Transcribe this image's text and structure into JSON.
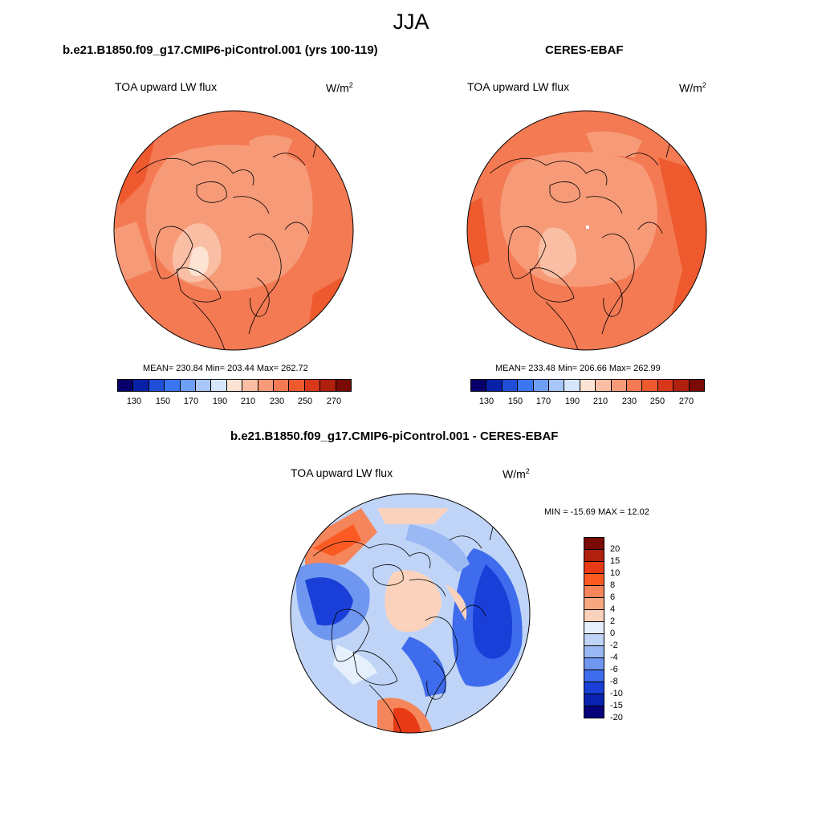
{
  "season": "JJA",
  "panels": [
    {
      "title": "b.e21.B1850.f09_g17.CMIP6-piControl.001 (yrs 100-119)",
      "variable": "TOA upward LW flux",
      "unit_base": "W/m",
      "unit_exp": "2",
      "stats": "MEAN= 230.84  Min= 203.44  Max= 262.72",
      "colorbar_labels": [
        "130",
        "150",
        "170",
        "190",
        "210",
        "230",
        "250",
        "270"
      ]
    },
    {
      "title": "CERES-EBAF",
      "variable": "TOA upward LW flux",
      "unit_base": "W/m",
      "unit_exp": "2",
      "stats": "MEAN= 233.48  Min= 206.66  Max= 262.99",
      "colorbar_labels": [
        "130",
        "150",
        "170",
        "190",
        "210",
        "230",
        "250",
        "270"
      ]
    },
    {
      "title": "b.e21.B1850.f09_g17.CMIP6-piControl.001 - CERES-EBAF",
      "variable": "TOA upward LW flux",
      "unit_base": "W/m",
      "unit_exp": "2",
      "stats": "MIN = -15.69 MAX =  12.02",
      "colorbar_labels": [
        "20",
        "15",
        "10",
        "8",
        "6",
        "4",
        "2",
        "0",
        "-2",
        "-4",
        "-6",
        "-8",
        "-10",
        "-15",
        "-20"
      ]
    }
  ],
  "colors": {
    "abs_colorbar": [
      "#08006a",
      "#0a1fa8",
      "#1f4fd8",
      "#3a76f0",
      "#6f9ff5",
      "#a8c6f7",
      "#d6e6fb",
      "#fde3d3",
      "#f9bea3",
      "#f69a78",
      "#f37a53",
      "#ee5a2e",
      "#d8371a",
      "#b0200f",
      "#7a0a06"
    ],
    "diff_colorbar": [
      "#7a0a06",
      "#b0200f",
      "#e83a14",
      "#fb5a23",
      "#f5855a",
      "#f7a87f",
      "#fbd2bb",
      "#e6effc",
      "#c0d4f7",
      "#9ab8f3",
      "#6f97ef",
      "#3f6cec",
      "#1a3fd9",
      "#0a22b0",
      "#06007a"
    ],
    "map_abs_base": "#f37a53",
    "map_abs_mid": "#f69a78",
    "map_abs_low": "#f9bea3",
    "map_abs_lowest": "#fde3d3",
    "map_abs_high": "#ee5a2e",
    "map_diff_base": "#c0d4f7"
  }
}
